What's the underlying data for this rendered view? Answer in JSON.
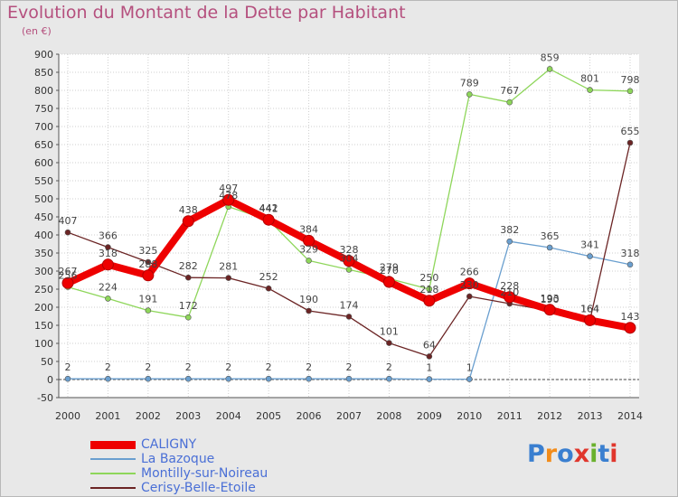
{
  "header": {
    "title": "Evolution du Montant de la Dette par Habitant",
    "unit": "(en €)"
  },
  "logo": {
    "text": "Proxiti",
    "colors": [
      "#3a7fd0",
      "#f28c1a",
      "#3a7fd0",
      "#e0362c",
      "#6ab12e",
      "#3a7fd0",
      "#e0362c"
    ]
  },
  "chart_data": {
    "type": "line",
    "title": "Evolution du Montant de la Dette par Habitant",
    "ylabel": "(en €)",
    "xlabel": "",
    "ylim": [
      -50,
      900
    ],
    "ytick_step": 50,
    "grid": true,
    "legend_position": "bottom-left",
    "x": [
      2000,
      2001,
      2002,
      2003,
      2004,
      2005,
      2006,
      2007,
      2008,
      2009,
      2010,
      2011,
      2012,
      2013,
      2014
    ],
    "series": [
      {
        "name": "CALIGNY",
        "color": "#ee0000",
        "emphasis": true,
        "values": [
          267,
          318,
          288,
          438,
          497,
          442,
          384,
          328,
          270,
          218,
          266,
          228,
          193,
          164,
          143
        ]
      },
      {
        "name": "La Bazoque",
        "color": "#6a9fcf",
        "values": [
          2,
          2,
          2,
          2,
          2,
          2,
          2,
          2,
          2,
          1,
          1,
          382,
          365,
          341,
          318
        ]
      },
      {
        "name": "Montilly-sur-Noireau",
        "color": "#8ed65a",
        "values": [
          256,
          224,
          191,
          172,
          478,
          441,
          329,
          304,
          279,
          250,
          789,
          767,
          859,
          801,
          798
        ]
      },
      {
        "name": "Cerisy-Belle-Etoile",
        "color": "#6b2424",
        "values": [
          407,
          366,
          325,
          282,
          281,
          252,
          190,
          174,
          101,
          64,
          230,
          210,
          190,
          164,
          655
        ]
      }
    ]
  }
}
